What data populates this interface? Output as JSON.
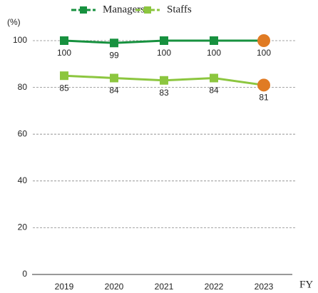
{
  "chart_data": {
    "type": "line",
    "categories": [
      "2019",
      "2020",
      "2021",
      "2022",
      "2023"
    ],
    "series": [
      {
        "name": "Managers",
        "color": "#17913f",
        "values": [
          100,
          99,
          100,
          100,
          100
        ]
      },
      {
        "name": "Staffs",
        "color": "#8cc63f",
        "values": [
          85,
          84,
          83,
          84,
          81
        ]
      }
    ],
    "y_axis_label": "(%)",
    "x_axis_label": "FY",
    "ylim": [
      0,
      100
    ],
    "yticks": [
      0,
      20,
      40,
      60,
      80,
      100
    ],
    "grid": true,
    "highlight_color": "#e07b24",
    "legend": "top"
  }
}
